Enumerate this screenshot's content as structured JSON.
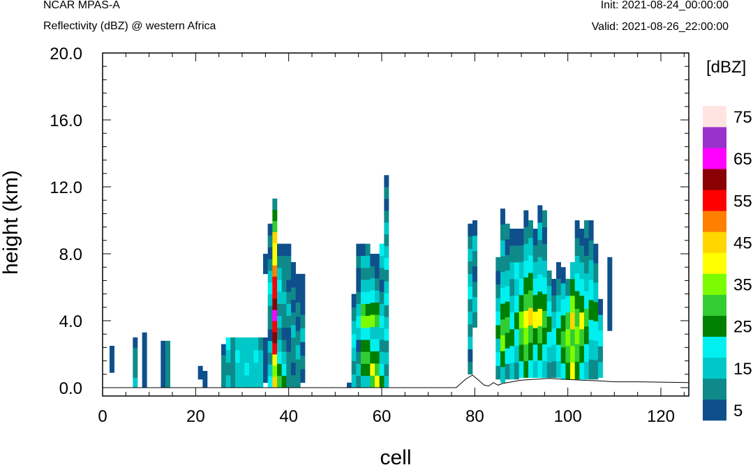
{
  "header": {
    "left_top": "NCAR MPAS-A",
    "left_bottom": "Reflectivity (dBZ) @ western Africa",
    "right_top": "Init: 2021-08-24_00:00:00",
    "right_bottom": "Valid: 2021-08-26_22:00:00"
  },
  "chart_data": {
    "type": "heatmap",
    "title": "Reflectivity (dBZ) @ western Africa",
    "xlabel": "cell",
    "ylabel": "height (km)",
    "xlim": [
      0,
      126
    ],
    "ylim": [
      -0.5,
      20
    ],
    "x_ticks": [
      "0",
      "20",
      "40",
      "60",
      "80",
      "100",
      "120"
    ],
    "y_ticks": [
      "0.0",
      "4.0",
      "8.0",
      "12.0",
      "16.0",
      "20.0"
    ],
    "colorbar": {
      "unit_label": "[dBZ]",
      "levels": [
        5,
        10,
        15,
        20,
        25,
        30,
        35,
        40,
        45,
        50,
        55,
        60,
        65,
        70,
        75
      ],
      "tick_labels": [
        "5",
        "15",
        "25",
        "35",
        "45",
        "55",
        "65",
        "75"
      ],
      "colors": [
        "#0f4f8c",
        "#0f8a8a",
        "#00c8c8",
        "#00f0f0",
        "#008000",
        "#32cd32",
        "#7cfc00",
        "#ffff00",
        "#ffd700",
        "#ff8000",
        "#ff0000",
        "#8b0000",
        "#ff00ff",
        "#9932cc",
        "#ffe4e1"
      ]
    },
    "terrain": [
      [
        0,
        0
      ],
      [
        76,
        0
      ],
      [
        78,
        0.5
      ],
      [
        79.5,
        0.75
      ],
      [
        81,
        0.4
      ],
      [
        82,
        0.15
      ],
      [
        83,
        0.1
      ],
      [
        84,
        0.3
      ],
      [
        85,
        0.15
      ],
      [
        86,
        0.25
      ],
      [
        88,
        0.35
      ],
      [
        90,
        0.45
      ],
      [
        93,
        0.5
      ],
      [
        96,
        0.55
      ],
      [
        99,
        0.5
      ],
      [
        103,
        0.45
      ],
      [
        107,
        0.4
      ],
      [
        110,
        0.35
      ],
      [
        115,
        0.35
      ],
      [
        120,
        0.33
      ],
      [
        126,
        0.3
      ]
    ],
    "columns": [
      {
        "x": 2,
        "z0": 0.9,
        "z1": 2.5,
        "levels": [
          5
        ]
      },
      {
        "x": 7,
        "z0": 0,
        "z1": 3.0,
        "levels": [
          15,
          10,
          10,
          10,
          5
        ]
      },
      {
        "x": 9,
        "z0": 0,
        "z1": 3.3,
        "levels": [
          5
        ]
      },
      {
        "x": 13,
        "z0": 0,
        "z1": 2.8,
        "levels": [
          5,
          5,
          5,
          5
        ]
      },
      {
        "x": 14,
        "z0": 0,
        "z1": 2.8,
        "levels": [
          10,
          10,
          10,
          10,
          10
        ]
      },
      {
        "x": 21,
        "z0": 0.5,
        "z1": 1.3,
        "levels": [
          5
        ]
      },
      {
        "x": 22,
        "z0": 0,
        "z1": 1.0,
        "levels": [
          5,
          5
        ]
      },
      {
        "x": 26,
        "z0": 0,
        "z1": 2.6,
        "levels": [
          10,
          10,
          10,
          5
        ]
      },
      {
        "x": 27,
        "z0": 0,
        "z1": 3.0,
        "levels": [
          15,
          10,
          15,
          20
        ]
      },
      {
        "x": 28,
        "z0": 0,
        "z1": 3.0,
        "levels": [
          10,
          10,
          10,
          10
        ]
      },
      {
        "x": 29,
        "z0": 0,
        "z1": 3.0,
        "levels": [
          15,
          15,
          20,
          15
        ]
      },
      {
        "x": 30,
        "z0": 0,
        "z1": 3.0,
        "levels": [
          15,
          15,
          15,
          15
        ]
      },
      {
        "x": 31,
        "z0": 0,
        "z1": 3.0,
        "levels": [
          15,
          20,
          15,
          15
        ]
      },
      {
        "x": 32,
        "z0": 0,
        "z1": 3.0,
        "levels": [
          15,
          15,
          15,
          15
        ]
      },
      {
        "x": 33,
        "z0": 0,
        "z1": 3.0,
        "levels": [
          15,
          15,
          20,
          15
        ]
      },
      {
        "x": 34,
        "z0": 0,
        "z1": 3.0,
        "levels": [
          15,
          15,
          15,
          10
        ]
      },
      {
        "x": 35,
        "z0": 0.3,
        "z1": 3.0,
        "levels": [
          5,
          5,
          5,
          5
        ]
      },
      {
        "x": 35,
        "z0": 6.8,
        "z1": 8.0,
        "levels": [
          5
        ]
      },
      {
        "x": 36,
        "z0": 0,
        "z1": 9.8,
        "levels": [
          20,
          15,
          10,
          15,
          5,
          10,
          10,
          15,
          20,
          15,
          10,
          5,
          10,
          5
        ]
      },
      {
        "x": 37,
        "z0": 0,
        "z1": 11.3,
        "levels": [
          45,
          35,
          40,
          55,
          60,
          55,
          65,
          60,
          55,
          55,
          50,
          40,
          40,
          45,
          30,
          25,
          10
        ]
      },
      {
        "x": 38,
        "z0": 0,
        "z1": 8.6,
        "levels": [
          30,
          25,
          20,
          15,
          10,
          15,
          10,
          15,
          20,
          15,
          10,
          5
        ]
      },
      {
        "x": 39,
        "z0": 0,
        "z1": 8.6,
        "levels": [
          25,
          20,
          15,
          10,
          5,
          10,
          10,
          15,
          10,
          10,
          10,
          5
        ]
      },
      {
        "x": 40,
        "z0": 0,
        "z1": 8.6,
        "levels": [
          10,
          10,
          10,
          5,
          5,
          10,
          15,
          10,
          5,
          10,
          10,
          5
        ]
      },
      {
        "x": 41,
        "z0": 0,
        "z1": 7.5,
        "levels": [
          10,
          5,
          10,
          10,
          15,
          10,
          5,
          10,
          5,
          5
        ]
      },
      {
        "x": 42,
        "z0": 0,
        "z1": 6.8,
        "levels": [
          10,
          10,
          15,
          10,
          5,
          10,
          5,
          5
        ]
      },
      {
        "x": 43,
        "z0": 0.3,
        "z1": 6.8,
        "levels": [
          5,
          10,
          5,
          15,
          10,
          5,
          5,
          5
        ]
      },
      {
        "x": 53,
        "z0": 0,
        "z1": 0.3,
        "levels": [
          5
        ]
      },
      {
        "x": 54,
        "z0": 0,
        "z1": 5.6,
        "levels": [
          15,
          10,
          15,
          20,
          15,
          10,
          5
        ]
      },
      {
        "x": 55,
        "z0": 0,
        "z1": 8.6,
        "levels": [
          10,
          15,
          10,
          5,
          15,
          20,
          15,
          10,
          5,
          5,
          10,
          5
        ]
      },
      {
        "x": 56,
        "z0": 0,
        "z1": 8.6,
        "levels": [
          15,
          25,
          30,
          25,
          20,
          35,
          30,
          20,
          15,
          10,
          15,
          5
        ]
      },
      {
        "x": 57,
        "z0": 0,
        "z1": 8.6,
        "levels": [
          15,
          25,
          30,
          25,
          20,
          35,
          25,
          20,
          15,
          10,
          15,
          10
        ]
      },
      {
        "x": 58,
        "z0": 0,
        "z1": 8.0,
        "levels": [
          30,
          40,
          25,
          20,
          15,
          35,
          25,
          20,
          15,
          10,
          5
        ]
      },
      {
        "x": 59,
        "z0": 0,
        "z1": 8.0,
        "levels": [
          40,
          30,
          25,
          20,
          15,
          30,
          25,
          15,
          10,
          5,
          5
        ]
      },
      {
        "x": 60,
        "z0": 0,
        "z1": 8.6,
        "levels": [
          25,
          20,
          15,
          10,
          15,
          20,
          15,
          10,
          5,
          10,
          15,
          20
        ]
      },
      {
        "x": 61,
        "z0": 0,
        "z1": 12.7,
        "levels": [
          15,
          10,
          15,
          10,
          20,
          15,
          10,
          20,
          15,
          10,
          20,
          15,
          10,
          15,
          10,
          5,
          10,
          5
        ]
      },
      {
        "x": 79,
        "z0": 0.8,
        "z1": 9.8,
        "levels": [
          10,
          5,
          15,
          10,
          15,
          10,
          20,
          15,
          10,
          15,
          10,
          5
        ]
      },
      {
        "x": 80,
        "z0": 3.6,
        "z1": 10.0,
        "levels": [
          10,
          15,
          10,
          5,
          10,
          15,
          5
        ]
      },
      {
        "x": 85,
        "z0": 0.5,
        "z1": 7.8,
        "levels": [
          10,
          20,
          15,
          25,
          20,
          15,
          10,
          5,
          10
        ]
      },
      {
        "x": 86,
        "z0": 0.3,
        "z1": 10.7,
        "levels": [
          15,
          25,
          35,
          30,
          25,
          20,
          15,
          10,
          15,
          10,
          5
        ]
      },
      {
        "x": 87,
        "z0": 0.5,
        "z1": 9.8,
        "levels": [
          10,
          20,
          25,
          30,
          25,
          20,
          15,
          10,
          5,
          10
        ]
      },
      {
        "x": 88,
        "z0": 0.5,
        "z1": 9.5,
        "levels": [
          15,
          20,
          25,
          20,
          15,
          10,
          15,
          10,
          5
        ]
      },
      {
        "x": 89,
        "z0": 0.5,
        "z1": 9.5,
        "levels": [
          10,
          15,
          20,
          25,
          20,
          15,
          20,
          10,
          5
        ]
      },
      {
        "x": 90,
        "z0": 0.6,
        "z1": 9.5,
        "levels": [
          20,
          25,
          30,
          35,
          25,
          20,
          15,
          10,
          5
        ]
      },
      {
        "x": 91,
        "z0": 0.6,
        "z1": 10.6,
        "levels": [
          25,
          30,
          35,
          40,
          30,
          25,
          20,
          15,
          10,
          5
        ]
      },
      {
        "x": 92,
        "z0": 0.6,
        "z1": 10.0,
        "levels": [
          20,
          25,
          30,
          45,
          30,
          25,
          20,
          15,
          10
        ]
      },
      {
        "x": 93,
        "z0": 0.6,
        "z1": 9.5,
        "levels": [
          15,
          20,
          25,
          40,
          25,
          20,
          15,
          10,
          5
        ]
      },
      {
        "x": 94,
        "z0": 0.6,
        "z1": 10.9,
        "levels": [
          20,
          25,
          30,
          40,
          25,
          20,
          15,
          10,
          15,
          5
        ]
      },
      {
        "x": 95,
        "z0": 0.6,
        "z1": 10.6,
        "levels": [
          15,
          20,
          25,
          30,
          25,
          20,
          15,
          10,
          5,
          10
        ]
      },
      {
        "x": 96,
        "z0": 0.6,
        "z1": 7.0,
        "levels": [
          10,
          15,
          20,
          25,
          20,
          15,
          10
        ]
      },
      {
        "x": 97,
        "z0": 0.6,
        "z1": 6.5,
        "levels": [
          10,
          15,
          20,
          15,
          10,
          5
        ]
      },
      {
        "x": 98,
        "z0": 0.6,
        "z1": 7.5,
        "levels": [
          15,
          20,
          25,
          20,
          15,
          10,
          5
        ]
      },
      {
        "x": 99,
        "z0": 0.5,
        "z1": 7.2,
        "levels": [
          20,
          25,
          30,
          25,
          20,
          15,
          5
        ]
      },
      {
        "x": 100,
        "z0": 0.5,
        "z1": 6.5,
        "levels": [
          25,
          30,
          35,
          30,
          20,
          10
        ]
      },
      {
        "x": 101,
        "z0": 0.5,
        "z1": 7.5,
        "levels": [
          40,
          35,
          30,
          45,
          35,
          25,
          15
        ]
      },
      {
        "x": 102,
        "z0": 0.5,
        "z1": 10.0,
        "levels": [
          25,
          30,
          35,
          30,
          25,
          20,
          15,
          10,
          5
        ]
      },
      {
        "x": 103,
        "z0": 0.5,
        "z1": 9.5,
        "levels": [
          20,
          25,
          30,
          40,
          25,
          20,
          15,
          10,
          5
        ]
      },
      {
        "x": 104,
        "z0": 0.5,
        "z1": 10.0,
        "levels": [
          15,
          20,
          25,
          30,
          20,
          15,
          10,
          5,
          10
        ]
      },
      {
        "x": 105,
        "z0": 0.5,
        "z1": 10.0,
        "levels": [
          10,
          15,
          20,
          25,
          20,
          15,
          10,
          5
        ]
      },
      {
        "x": 106,
        "z0": 0.5,
        "z1": 8.6,
        "levels": [
          10,
          15,
          20,
          25,
          15,
          10,
          5
        ]
      },
      {
        "x": 107,
        "z0": 0.6,
        "z1": 5.3,
        "levels": [
          15,
          10,
          20,
          15,
          5
        ]
      },
      {
        "x": 109,
        "z0": 3.4,
        "z1": 7.8,
        "levels": [
          5,
          5,
          5
        ]
      }
    ]
  }
}
